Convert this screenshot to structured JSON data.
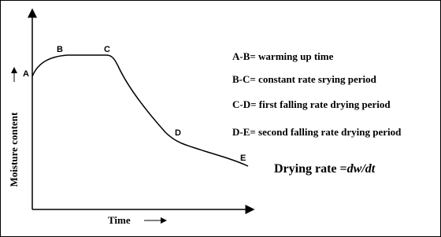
{
  "axes": {
    "y_label": "Moisture content",
    "x_label": "Time"
  },
  "points": [
    {
      "label": "A"
    },
    {
      "label": "B"
    },
    {
      "label": "C"
    },
    {
      "label": "D"
    },
    {
      "label": "E"
    }
  ],
  "legend": [
    "A-B= warming up time",
    "B-C= constant rate srying period",
    "C-D= first falling rate drying period",
    "D-E= second falling rate drying period"
  ],
  "formula": {
    "text": "Drying rate =",
    "expression": "dw/dt"
  }
}
